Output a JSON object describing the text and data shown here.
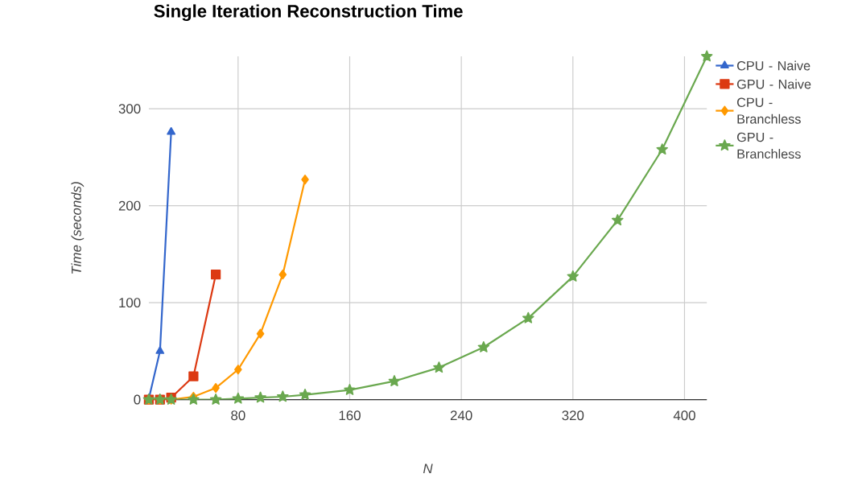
{
  "chart_data": {
    "type": "line",
    "title": "Single Iteration Reconstruction Time",
    "xlabel": "N",
    "ylabel": "Time (seconds)",
    "x": [
      16,
      24,
      32,
      48,
      64,
      80,
      96,
      112,
      128,
      160,
      192,
      224,
      256,
      288,
      320,
      352,
      384,
      416
    ],
    "series": [
      {
        "name": "CPU - Naive",
        "color": "#3366cc",
        "marker": "triangle",
        "values": [
          1,
          50,
          276,
          null,
          null,
          null,
          null,
          null,
          null,
          null,
          null,
          null,
          null,
          null,
          null,
          null,
          null,
          null
        ]
      },
      {
        "name": "GPU - Naive",
        "color": "#dc3912",
        "marker": "square",
        "values": [
          0,
          0,
          2,
          24,
          129,
          null,
          null,
          null,
          null,
          null,
          null,
          null,
          null,
          null,
          null,
          null,
          null,
          null
        ]
      },
      {
        "name": "CPU - Branchless",
        "color": "#ff9900",
        "marker": "diamond",
        "values": [
          0,
          0,
          0,
          3,
          12,
          31,
          68,
          129,
          227,
          null,
          null,
          null,
          null,
          null,
          null,
          null,
          null,
          null
        ]
      },
      {
        "name": "GPU - Branchless",
        "color": "#6aa84f",
        "marker": "star",
        "values": [
          0,
          0,
          0,
          0,
          0,
          1,
          2,
          3,
          5,
          10,
          19,
          33,
          54,
          84,
          127,
          185,
          258,
          354
        ]
      }
    ],
    "xlim": [
      16,
      416
    ],
    "xticks": [
      80,
      160,
      240,
      320,
      400
    ],
    "ylim": [
      0,
      354
    ],
    "yticks": [
      0,
      100,
      200,
      300
    ],
    "grid": true,
    "legend": "right"
  }
}
